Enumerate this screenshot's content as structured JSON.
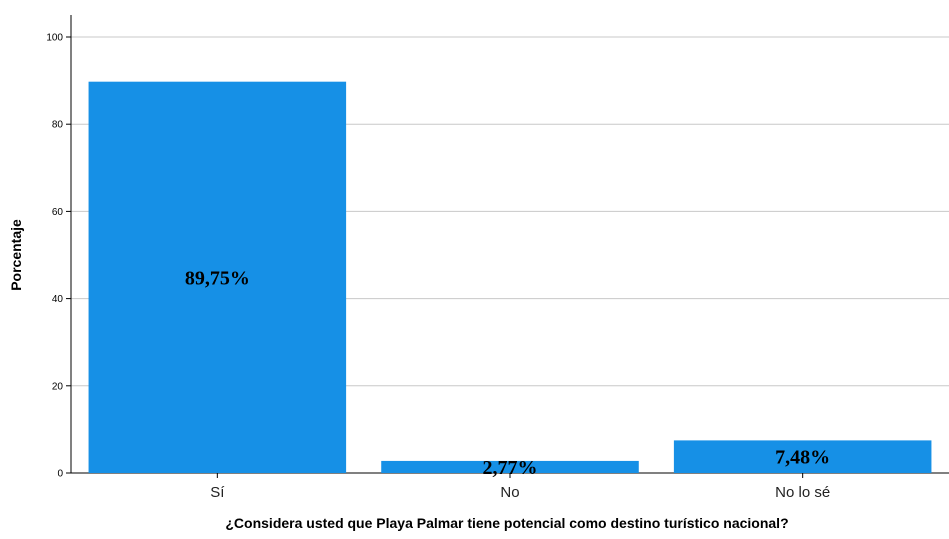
{
  "chart_data": {
    "type": "bar",
    "categories": [
      "Sí",
      "No",
      "No lo sé"
    ],
    "values": [
      89.75,
      2.77,
      7.48
    ],
    "data_labels": [
      "89,75%",
      "2,77%",
      "7,48%"
    ],
    "xlabel": "¿Considera usted que Playa Palmar tiene potencial como destino turístico nacional?",
    "ylabel": "Porcentaje",
    "ylim": [
      0,
      100
    ],
    "yticks": [
      0,
      20,
      40,
      60,
      80,
      100
    ],
    "grid": true,
    "bar_color": "#1690e6"
  }
}
